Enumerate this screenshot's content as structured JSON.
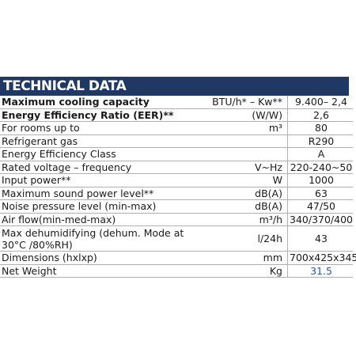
{
  "header": {
    "title": "TECHNICAL DATA"
  },
  "rows": [
    {
      "label": "Maximum cooling capacity",
      "unit": "BTU/h* – Kw**",
      "value": "9.400– 2,4"
    },
    {
      "label": "Energy Efficiency Ratio (EER)**",
      "unit": "(W/W)",
      "value": "2,6"
    },
    {
      "label": "For rooms up to",
      "unit": "m³",
      "value": "80"
    },
    {
      "label": "Refrigerant gas",
      "unit": "",
      "value": "R290"
    },
    {
      "label": "Energy Efficiency Class",
      "unit": "",
      "value": "A"
    },
    {
      "label": "Rated voltage – frequency",
      "unit": "V~Hz",
      "value": "220-240~50"
    },
    {
      "label": "Input power**",
      "unit": "W",
      "value": "1000"
    },
    {
      "label": "Maximum sound power level**",
      "unit": "dB(A)",
      "value": "63"
    },
    {
      "label": "Noise pressure level (min-max)",
      "unit": "dB(A)",
      "value": "47/50"
    },
    {
      "label": "Air flow(min-med-max)",
      "unit": "m³/h",
      "value": "340/370/400"
    },
    {
      "label": "Max dehumidifying (dehum. Mode at 30°C /80%RH)",
      "unit": "l/24h",
      "value": "43"
    },
    {
      "label": "Dimensions (hxlxp)",
      "unit": "mm",
      "value": "700x425x345"
    },
    {
      "label": "Net Weight",
      "unit": "Kg",
      "value": "31.5"
    }
  ]
}
